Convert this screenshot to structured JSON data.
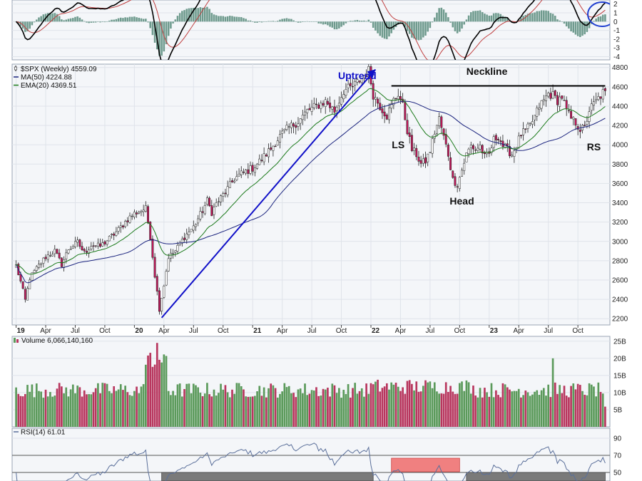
{
  "chart_data": {
    "type": "candlestick",
    "colors": {
      "up": "#2e7d32",
      "down": "#c2185b",
      "panel_bg": "#f4f6f9",
      "grid": "#dfe3ea",
      "ma": "#1a237e",
      "ema": "#1b7a1b",
      "uptrend": "#1010c8",
      "vol_up": "#5b9a5b",
      "vol_down": "#b8365e",
      "rsi": "#5a6f9a",
      "rsi_fill_low": "#7a7a7a",
      "rsi_fill_high": "#f08080"
    },
    "price_panel": {
      "legend": [
        {
          "text": "$SPX (Weekly) 4559.09",
          "marker": "candle-icon"
        },
        {
          "text": "MA(50) 4224.88",
          "marker": "line-icon"
        },
        {
          "text": "EMA(20) 4369.51",
          "marker": "line-icon"
        }
      ],
      "ylim": [
        2150,
        4820
      ],
      "yticks": [
        2200,
        2400,
        2600,
        2800,
        3000,
        3200,
        3400,
        3600,
        3800,
        4000,
        4200,
        4400,
        4600,
        4800
      ],
      "x_ticks": [
        {
          "label": "19",
          "bold": true,
          "week": 0
        },
        {
          "label": "Apr",
          "week": 13
        },
        {
          "label": "Jul",
          "week": 26
        },
        {
          "label": "Oct",
          "week": 39
        },
        {
          "label": "20",
          "bold": true,
          "week": 52
        },
        {
          "label": "Apr",
          "week": 65
        },
        {
          "label": "Jul",
          "week": 78
        },
        {
          "label": "Oct",
          "week": 91
        },
        {
          "label": "21",
          "bold": true,
          "week": 104
        },
        {
          "label": "Apr",
          "week": 117
        },
        {
          "label": "Jul",
          "week": 130
        },
        {
          "label": "Oct",
          "week": 143
        },
        {
          "label": "22",
          "bold": true,
          "week": 156
        },
        {
          "label": "Apr",
          "week": 169
        },
        {
          "label": "Jul",
          "week": 182
        },
        {
          "label": "Oct",
          "week": 195
        },
        {
          "label": "23",
          "bold": true,
          "week": 208
        },
        {
          "label": "Apr",
          "week": 221
        },
        {
          "label": "Jul",
          "week": 234
        },
        {
          "label": "Oct",
          "week": 247
        }
      ],
      "weeks": 260,
      "close_keypoints": [
        [
          0,
          2750
        ],
        [
          2,
          2580
        ],
        [
          4,
          2390
        ],
        [
          6,
          2620
        ],
        [
          9,
          2720
        ],
        [
          13,
          2840
        ],
        [
          17,
          2900
        ],
        [
          20,
          2760
        ],
        [
          23,
          2920
        ],
        [
          27,
          2990
        ],
        [
          30,
          2880
        ],
        [
          33,
          2960
        ],
        [
          37,
          2950
        ],
        [
          41,
          3030
        ],
        [
          45,
          3120
        ],
        [
          49,
          3230
        ],
        [
          52,
          3290
        ],
        [
          57,
          3340
        ],
        [
          59,
          3050
        ],
        [
          61,
          2650
        ],
        [
          63,
          2300
        ],
        [
          65,
          2550
        ],
        [
          67,
          2840
        ],
        [
          70,
          2900
        ],
        [
          74,
          3050
        ],
        [
          78,
          3150
        ],
        [
          82,
          3320
        ],
        [
          84,
          3420
        ],
        [
          86,
          3300
        ],
        [
          88,
          3390
        ],
        [
          92,
          3510
        ],
        [
          96,
          3650
        ],
        [
          99,
          3700
        ],
        [
          104,
          3760
        ],
        [
          108,
          3850
        ],
        [
          112,
          3960
        ],
        [
          116,
          4090
        ],
        [
          120,
          4180
        ],
        [
          124,
          4240
        ],
        [
          128,
          4350
        ],
        [
          132,
          4400
        ],
        [
          136,
          4450
        ],
        [
          140,
          4350
        ],
        [
          144,
          4560
        ],
        [
          148,
          4600
        ],
        [
          152,
          4690
        ],
        [
          155,
          4770
        ],
        [
          157,
          4520
        ],
        [
          160,
          4400
        ],
        [
          163,
          4300
        ],
        [
          166,
          4460
        ],
        [
          168,
          4530
        ],
        [
          170,
          4400
        ],
        [
          172,
          4150
        ],
        [
          174,
          3950
        ],
        [
          176,
          3900
        ],
        [
          178,
          3800
        ],
        [
          180,
          3830
        ],
        [
          182,
          3940
        ],
        [
          184,
          4130
        ],
        [
          186,
          4270
        ],
        [
          188,
          4080
        ],
        [
          190,
          3900
        ],
        [
          192,
          3640
        ],
        [
          194,
          3590
        ],
        [
          196,
          3740
        ],
        [
          198,
          3900
        ],
        [
          200,
          3990
        ],
        [
          202,
          3950
        ],
        [
          204,
          3990
        ],
        [
          206,
          3870
        ],
        [
          208,
          3900
        ],
        [
          210,
          4050
        ],
        [
          212,
          4090
        ],
        [
          214,
          3990
        ],
        [
          216,
          3950
        ],
        [
          218,
          3900
        ],
        [
          220,
          4000
        ],
        [
          222,
          4110
        ],
        [
          224,
          4140
        ],
        [
          226,
          4200
        ],
        [
          228,
          4290
        ],
        [
          230,
          4400
        ],
        [
          232,
          4460
        ],
        [
          234,
          4530
        ],
        [
          236,
          4510
        ],
        [
          238,
          4460
        ],
        [
          240,
          4500
        ],
        [
          242,
          4350
        ],
        [
          244,
          4270
        ],
        [
          246,
          4230
        ],
        [
          248,
          4160
        ],
        [
          250,
          4170
        ],
        [
          252,
          4360
        ],
        [
          254,
          4420
        ],
        [
          256,
          4480
        ],
        [
          258,
          4540
        ],
        [
          259,
          4559
        ]
      ],
      "annotations": [
        {
          "text": "Uptrend",
          "week": 150,
          "value": 4715,
          "color": "#1010c8"
        },
        {
          "text": "Neckline",
          "week": 207,
          "value": 4760,
          "color": "#111111"
        },
        {
          "text": "LS",
          "week": 168,
          "value": 4000,
          "color": "#111111"
        },
        {
          "text": "Head",
          "week": 196,
          "value": 3420,
          "color": "#111111"
        },
        {
          "text": "RS",
          "week": 254,
          "value": 3980,
          "color": "#111111"
        }
      ],
      "neckline": {
        "from_week": 165,
        "to_week": 259,
        "value": 4610
      },
      "uptrend_line": {
        "from": [
          64,
          2210
        ],
        "to": [
          158,
          4780
        ]
      }
    },
    "macd_panel": {
      "yticks": [
        2,
        1,
        0,
        -1,
        -2,
        -3,
        -4
      ],
      "ylim": [
        -4.2,
        2.3
      ]
    },
    "volume_panel": {
      "legend": {
        "text": "Volume 6,066,140,160",
        "marker": "bar-icon"
      },
      "yticks": [
        "25B",
        "20B",
        "15B",
        "10B",
        "5B"
      ],
      "ytick_values": [
        25,
        20,
        15,
        10,
        5
      ],
      "ylim": [
        0,
        26
      ],
      "unit": "B"
    },
    "rsi_panel": {
      "legend": {
        "text": "RSI(14) 61.01",
        "marker": "line-icon"
      },
      "yticks": [
        90,
        70,
        50
      ],
      "ylim": [
        40,
        100
      ],
      "levels": [
        70,
        50
      ]
    }
  }
}
